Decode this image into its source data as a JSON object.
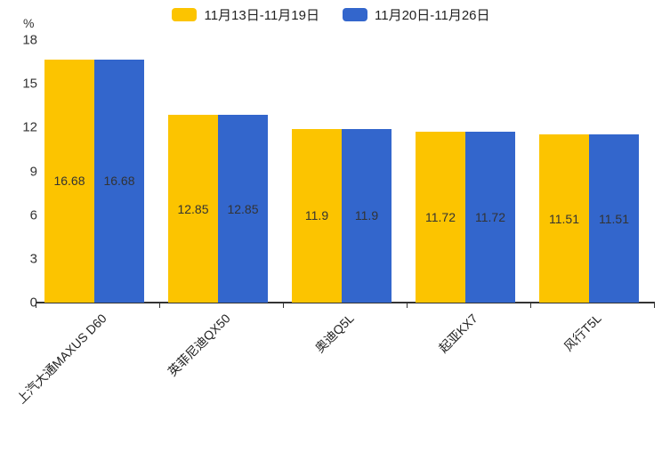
{
  "chart_data": {
    "type": "bar",
    "categories": [
      "上汽大通MAXUS D60",
      "英菲尼迪QX50",
      "奥迪Q5L",
      "起亚KX7",
      "风行T5L"
    ],
    "series": [
      {
        "name": "11月13日-11月19日",
        "color": "#FCC400",
        "values": [
          16.68,
          12.85,
          11.9,
          11.72,
          11.51
        ]
      },
      {
        "name": "11月20日-11月26日",
        "color": "#3366CC",
        "values": [
          16.68,
          12.85,
          11.9,
          11.72,
          11.51
        ]
      }
    ],
    "title": "",
    "xlabel": "",
    "ylabel": "%",
    "ylim": [
      0,
      18
    ],
    "yticks": [
      0,
      3,
      6,
      9,
      12,
      15,
      18
    ],
    "grid": false,
    "legend_position": "top",
    "value_labels": "inside-center",
    "label_color": "#333333",
    "axis_color": "#333333"
  }
}
